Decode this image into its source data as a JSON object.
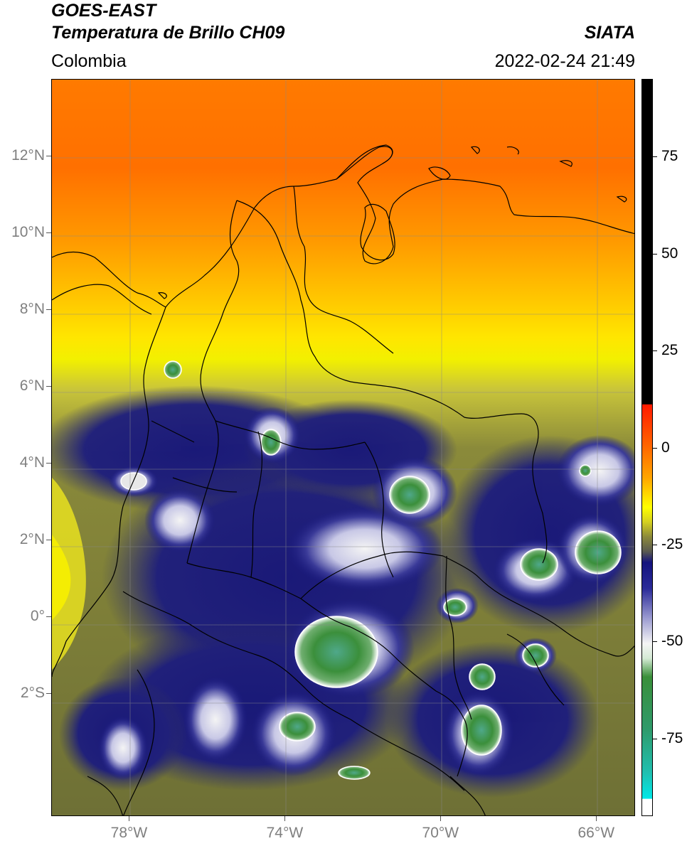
{
  "header": {
    "title_line1": "GOES-EAST",
    "title_line2": "Temperatura de Brillo CH09",
    "region": "Colombia",
    "organization": "SIATA",
    "timestamp": "2022-02-24 21:49"
  },
  "map": {
    "y_axis_ticks": [
      {
        "label": "12°N",
        "lat": 12
      },
      {
        "label": "10°N",
        "lat": 10
      },
      {
        "label": "8°N",
        "lat": 8
      },
      {
        "label": "6°N",
        "lat": 6
      },
      {
        "label": "4°N",
        "lat": 4
      },
      {
        "label": "2°N",
        "lat": 2
      },
      {
        "label": "0°",
        "lat": 0
      },
      {
        "label": "2°S",
        "lat": -2
      }
    ],
    "x_axis_ticks": [
      {
        "label": "78°W",
        "lon": -78
      },
      {
        "label": "74°W",
        "lon": -74
      },
      {
        "label": "70°W",
        "lon": -70
      },
      {
        "label": "66°W",
        "lon": -66
      }
    ],
    "lat_range": [
      -5.2,
      14.0
    ],
    "lon_range": [
      -80.0,
      -65.0
    ]
  },
  "colorbar": {
    "ticks": [
      {
        "label": "75",
        "value": 75
      },
      {
        "label": "50",
        "value": 50
      },
      {
        "label": "25",
        "value": 25
      },
      {
        "label": "0",
        "value": 0
      },
      {
        "label": "-25",
        "value": -25
      },
      {
        "label": "-50",
        "value": -50
      },
      {
        "label": "-75",
        "value": -75
      }
    ],
    "range": [
      -95,
      95
    ],
    "colors": {
      "warm_top": "#000000",
      "red": "#ff1a00",
      "orange": "#ff8c00",
      "yellow": "#ffff00",
      "olive": "#7a7a3a",
      "navy": "#14137e",
      "white": "#f5f5f5",
      "green": "#3a8f3a",
      "cyan": "#00e0e0"
    }
  }
}
